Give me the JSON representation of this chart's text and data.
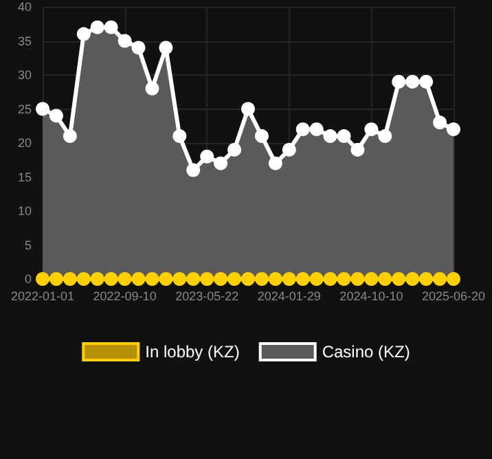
{
  "chart_data": {
    "type": "line",
    "categories": [
      "2022-01-01",
      null,
      null,
      null,
      null,
      null,
      "2022-09-10",
      null,
      null,
      null,
      null,
      null,
      "2023-05-22",
      null,
      null,
      null,
      null,
      null,
      "2024-01-29",
      null,
      null,
      null,
      null,
      null,
      "2024-10-10",
      null,
      null,
      null,
      null,
      null,
      "2025-06-20"
    ],
    "series": [
      {
        "name": "In lobby (KZ)",
        "color": "#ffd000",
        "values": [
          0,
          0,
          0,
          0,
          0,
          0,
          0,
          0,
          0,
          0,
          0,
          0,
          0,
          0,
          0,
          0,
          0,
          0,
          0,
          0,
          0,
          0,
          0,
          0,
          0,
          0,
          0,
          0,
          0,
          0,
          0
        ]
      },
      {
        "name": "Casino (KZ)",
        "type": "area",
        "color": "#ffffff",
        "values": [
          25,
          24,
          21,
          36,
          37,
          37,
          35,
          34,
          28,
          34,
          21,
          16,
          18,
          17,
          19,
          25,
          21,
          17,
          19,
          22,
          22,
          21,
          21,
          19,
          22,
          21,
          29,
          29,
          29,
          23,
          22
        ]
      }
    ],
    "ylim": [
      0,
      40
    ],
    "yticks": [
      0,
      5,
      10,
      15,
      20,
      25,
      30,
      35,
      40
    ],
    "grid": true,
    "legend": "bottom",
    "marker": "circle",
    "line_style": "solid"
  }
}
